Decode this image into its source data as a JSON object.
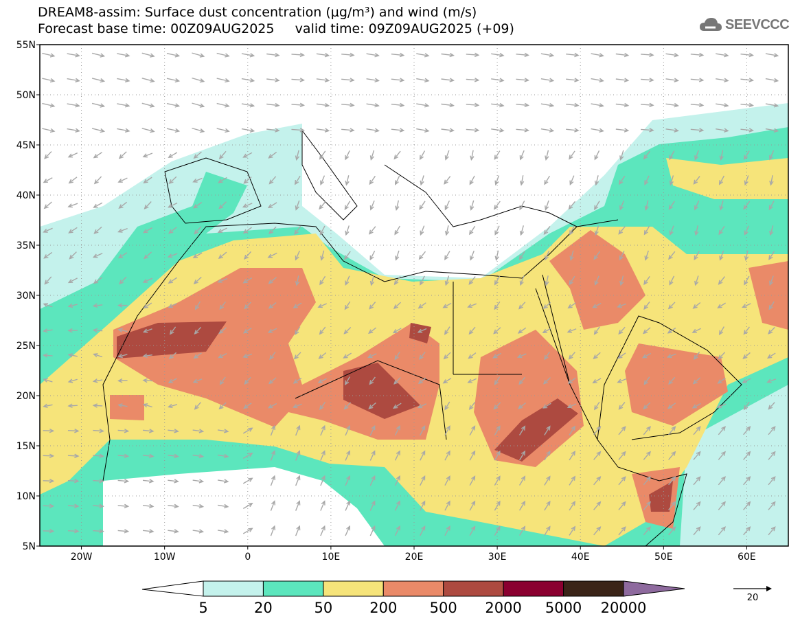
{
  "header": {
    "title_line1": "DREAM8-assim: Surface dust concentration (µg/m³) and wind (m/s)",
    "title_line2": "Forecast base time: 00Z09AUG2025     valid time: 09Z09AUG2025 (+09)",
    "logo_text": "SEEVCCC",
    "logo_icon": "cloud-icon"
  },
  "axes": {
    "lat_labels": [
      "55N",
      "50N",
      "45N",
      "40N",
      "35N",
      "30N",
      "25N",
      "20N",
      "15N",
      "10N",
      "5N"
    ],
    "lat_values": [
      55,
      50,
      45,
      40,
      35,
      30,
      25,
      20,
      15,
      10,
      5
    ],
    "lon_labels": [
      "20W",
      "10W",
      "0",
      "10E",
      "20E",
      "30E",
      "40E",
      "50E",
      "60E"
    ],
    "lon_values": [
      -20,
      -10,
      0,
      10,
      20,
      30,
      40,
      50,
      60
    ],
    "lon_range": [
      -25,
      65
    ],
    "lat_range": [
      5,
      55
    ]
  },
  "colorbar": {
    "labels": [
      "5",
      "20",
      "50",
      "200",
      "500",
      "2000",
      "5000",
      "20000"
    ],
    "colors": [
      "#ffffff",
      "#c4f2ec",
      "#5ce6bd",
      "#f6e47a",
      "#ea8a68",
      "#ad4a40",
      "#8a0030",
      "#3a2418",
      "#8e6a9e"
    ]
  },
  "wind_reference": {
    "label": "20",
    "unit": "m/s"
  }
}
